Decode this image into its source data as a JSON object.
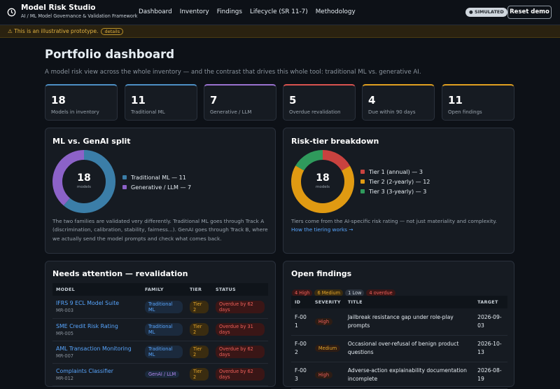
{
  "app": {
    "title": "Model Risk Studio",
    "subtitle": "AI / ML Model Governance & Validation Framework",
    "nav": [
      "Dashboard",
      "Inventory",
      "Findings",
      "Lifecycle (SR 11-7)",
      "Methodology"
    ],
    "mode": "SIMULATED",
    "reset": "Reset demo"
  },
  "banner": {
    "icon": "⚠",
    "text": "This is an illustrative prototype.",
    "details": "details"
  },
  "page": {
    "title": "Portfolio dashboard",
    "subtitle": "A model risk view across the whole inventory — and the contrast that drives this whole tool: traditional ML vs. generative AI."
  },
  "kpis": [
    {
      "value": 18,
      "label": "Models in inventory",
      "color": "#4d8fc4"
    },
    {
      "value": 11,
      "label": "Traditional ML",
      "color": "#4d8fc4"
    },
    {
      "value": 7,
      "label": "Generative / LLM",
      "color": "#9a72d0"
    },
    {
      "value": 5,
      "label": "Overdue revalidation",
      "color": "#d9534f"
    },
    {
      "value": 4,
      "label": "Due within 90 days",
      "color": "#e0a020"
    },
    {
      "value": 11,
      "label": "Open findings",
      "color": "#e0a020"
    }
  ],
  "split": {
    "title": "ML vs. GenAI split",
    "total": 18,
    "unit": "models",
    "segments": [
      {
        "legend": "Traditional ML — 11",
        "value": 11,
        "color": "#3b7ea8"
      },
      {
        "legend": "Generative / LLM — 7",
        "value": 7,
        "color": "#8c62c8"
      }
    ],
    "note": "The two families are validated very differently. Traditional ML goes through Track A (discrimination, calibration, stability, fairness...). GenAI goes through Track B, where we actually send the model prompts and check what comes back."
  },
  "tiers": {
    "title": "Risk-tier breakdown",
    "total": 18,
    "unit": "models",
    "segments": [
      {
        "legend": "Tier 1 (annual) — 3",
        "value": 3,
        "color": "#c9423f"
      },
      {
        "legend": "Tier 2 (2-yearly) — 12",
        "value": 12,
        "color": "#e09a12"
      },
      {
        "legend": "Tier 3 (3-yearly) — 3",
        "value": 3,
        "color": "#2f9a5c"
      }
    ],
    "note": "Tiers come from the AI-specific risk rating — not just materiality and complexity.",
    "link": "How the tiering works →"
  },
  "attention": {
    "title": "Needs attention — revalidation",
    "columns": [
      "MODEL",
      "FAMILY",
      "TIER",
      "STATUS"
    ],
    "rows": [
      {
        "model": "IFRS 9 ECL Model Suite",
        "id": "MR-003",
        "family": "Traditional ML",
        "family_color": "#58a6ff",
        "tier": "Tier 2",
        "status": "Overdue by 62 days"
      },
      {
        "model": "SME Credit Risk Rating",
        "id": "MR-005",
        "family": "Traditional ML",
        "family_color": "#58a6ff",
        "tier": "Tier 2",
        "status": "Overdue by 31 days"
      },
      {
        "model": "AML Transaction Monitoring",
        "id": "MR-007",
        "family": "Traditional ML",
        "family_color": "#58a6ff",
        "tier": "Tier 2",
        "status": "Overdue by 62 days"
      },
      {
        "model": "Complaints Classifier",
        "id": "MR-012",
        "family": "GenAI / LLM",
        "family_color": "#b388f0",
        "tier": "Tier 2",
        "status": "Overdue by 62 days"
      }
    ]
  },
  "findings": {
    "title": "Open findings",
    "chips": [
      "4 High",
      "6 Medium",
      "1 Low",
      "4 overdue"
    ],
    "columns": [
      "ID",
      "SEVERITY",
      "TITLE",
      "TARGET"
    ],
    "rows": [
      {
        "id": "F-001",
        "severity": "High",
        "severity_color": "#f0605a",
        "title": "Jailbreak resistance gap under role-play prompts",
        "target": "2026-09-03"
      },
      {
        "id": "F-002",
        "severity": "Medium",
        "severity_color": "#e3a52a",
        "title": "Occasional over-refusal of benign product questions",
        "target": "2026-10-13"
      },
      {
        "id": "F-003",
        "severity": "High",
        "severity_color": "#f0605a",
        "title": "Adverse-action explainability documentation incomplete",
        "target": "2026-08-19"
      }
    ]
  }
}
